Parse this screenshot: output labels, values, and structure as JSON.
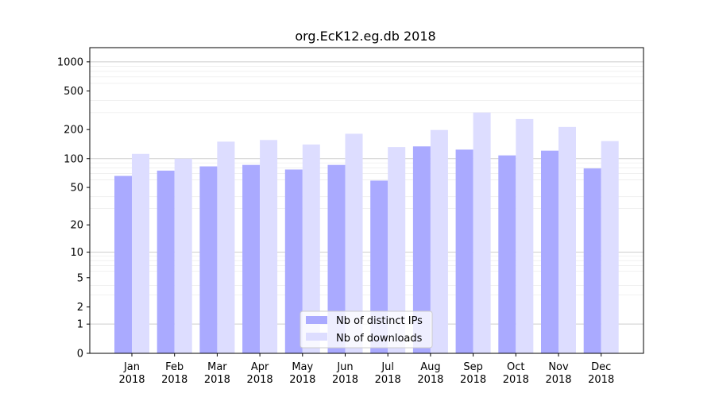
{
  "chart_data": {
    "type": "bar",
    "title": "org.EcK12.eg.db 2018",
    "xlabel": "",
    "ylabel": "",
    "y_scale": "log1p",
    "ylim": [
      0,
      1400
    ],
    "y_ticks": [
      0,
      1,
      2,
      5,
      10,
      20,
      50,
      100,
      200,
      500,
      1000
    ],
    "y_tick_labels": [
      "0",
      "1",
      "2",
      "5",
      "10",
      "20",
      "50",
      "100",
      "200",
      "500",
      "1000"
    ],
    "categories": [
      {
        "month": "Jan",
        "year": "2018"
      },
      {
        "month": "Feb",
        "year": "2018"
      },
      {
        "month": "Mar",
        "year": "2018"
      },
      {
        "month": "Apr",
        "year": "2018"
      },
      {
        "month": "May",
        "year": "2018"
      },
      {
        "month": "Jun",
        "year": "2018"
      },
      {
        "month": "Jul",
        "year": "2018"
      },
      {
        "month": "Aug",
        "year": "2018"
      },
      {
        "month": "Sep",
        "year": "2018"
      },
      {
        "month": "Oct",
        "year": "2018"
      },
      {
        "month": "Nov",
        "year": "2018"
      },
      {
        "month": "Dec",
        "year": "2018"
      }
    ],
    "series": [
      {
        "name": "Nb of distinct IPs",
        "color": "#aaaaff",
        "values": [
          66,
          75,
          83,
          86,
          77,
          86,
          59,
          134,
          124,
          108,
          121,
          79
        ]
      },
      {
        "name": "Nb of downloads",
        "color": "#ddddff",
        "values": [
          112,
          100,
          150,
          156,
          140,
          181,
          132,
          198,
          300,
          257,
          213,
          152
        ]
      }
    ],
    "grid": true,
    "legend_position": "bottom-center"
  }
}
